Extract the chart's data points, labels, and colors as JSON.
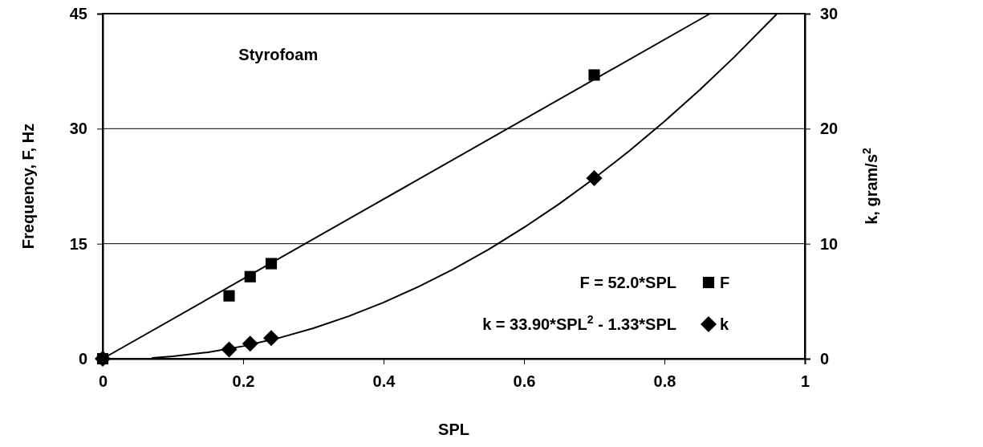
{
  "chart_data": {
    "type": "scatter",
    "title": "Styrofoam",
    "xlabel": "SPL",
    "ylabel": "Frequency, F, Hz",
    "y2label": "k, gram/s$^{2}$",
    "xlim": [
      0,
      1
    ],
    "xticks": [
      0,
      0.2,
      0.4,
      0.6,
      0.8,
      1
    ],
    "ylim": [
      0,
      45
    ],
    "yticks": [
      0,
      15,
      30,
      45
    ],
    "y2lim": [
      0,
      30
    ],
    "y2ticks": [
      0,
      10,
      20,
      30
    ],
    "grid": "y",
    "legend": "bottom right",
    "annotations": [
      "F = 52.0*SPL",
      "k = 33.90*SPL$^{2}$ - 1.33*SPL"
    ],
    "series": [
      {
        "name": "F",
        "marker": "square",
        "color": "#000000",
        "x": [
          0,
          0.18,
          0.21,
          0.24,
          0.7
        ],
        "values": [
          0,
          8.2,
          10.7,
          12.4,
          37
        ]
      },
      {
        "type": "line",
        "color": "#000000",
        "x": [
          0,
          0.865
        ],
        "values": [
          0,
          45
        ]
      },
      {
        "name": "k",
        "marker": "diamond",
        "axis": "y2",
        "color": "#000000",
        "x": [
          0,
          0.18,
          0.21,
          0.24,
          0.7
        ],
        "values": [
          0,
          0.8,
          1.3,
          1.8,
          15.7
        ]
      },
      {
        "type": "line",
        "axis": "y2",
        "color": "#000000",
        "x": [
          0.07,
          0.1,
          0.15,
          0.2,
          0.25,
          0.3,
          0.35,
          0.4,
          0.45,
          0.5,
          0.55,
          0.6,
          0.65,
          0.7,
          0.75,
          0.8,
          0.85,
          0.9,
          0.96
        ],
        "values": [
          0.07,
          0.21,
          0.56,
          1.09,
          1.79,
          2.65,
          3.69,
          4.89,
          6.27,
          7.81,
          9.52,
          11.41,
          13.46,
          15.68,
          18.07,
          20.63,
          23.36,
          26.26,
          29.97
        ]
      }
    ]
  }
}
